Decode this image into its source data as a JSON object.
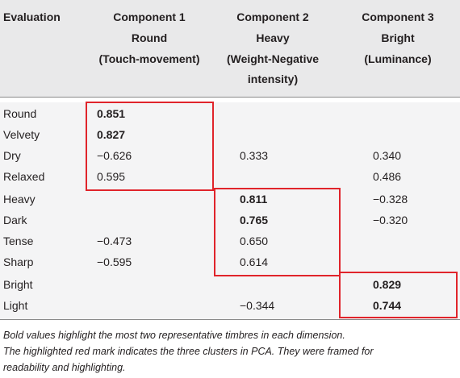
{
  "header": {
    "evaluation": "Evaluation",
    "components": [
      {
        "title": "Component 1",
        "name": "Round",
        "desc": "(Touch-movement)"
      },
      {
        "title": "Component 2",
        "name": "Heavy",
        "desc": "(Weight-Negative",
        "desc2": "intensity)"
      },
      {
        "title": "Component 3",
        "name": "Bright",
        "desc": "(Luminance)"
      }
    ]
  },
  "rows": [
    {
      "label": "Round",
      "c1": "0.851",
      "c2": "",
      "c3": ""
    },
    {
      "label": "Velvety",
      "c1": "0.827",
      "c2": "",
      "c3": ""
    },
    {
      "label": "Dry",
      "c1": "−0.626",
      "c2": "0.333",
      "c3": "0.340"
    },
    {
      "label": "Relaxed",
      "c1": "0.595",
      "c2": "",
      "c3": "0.486"
    },
    {
      "label": "Heavy",
      "c1": "",
      "c2": "0.811",
      "c3": "−0.328"
    },
    {
      "label": "Dark",
      "c1": "",
      "c2": "0.765",
      "c3": "−0.320"
    },
    {
      "label": "Tense",
      "c1": "−0.473",
      "c2": "0.650",
      "c3": ""
    },
    {
      "label": "Sharp",
      "c1": "−0.595",
      "c2": "0.614",
      "c3": ""
    },
    {
      "label": "Bright",
      "c1": "",
      "c2": "",
      "c3": "0.829"
    },
    {
      "label": "Light",
      "c1": "",
      "c2": "−0.344",
      "c3": "0.744"
    }
  ],
  "highlight_color": "#e0242b",
  "notes": [
    "Bold values highlight the most two representative timbres in each dimension.",
    "The highlighted red mark indicates the three clusters in PCA. They were framed for",
    "readability and highlighting."
  ]
}
